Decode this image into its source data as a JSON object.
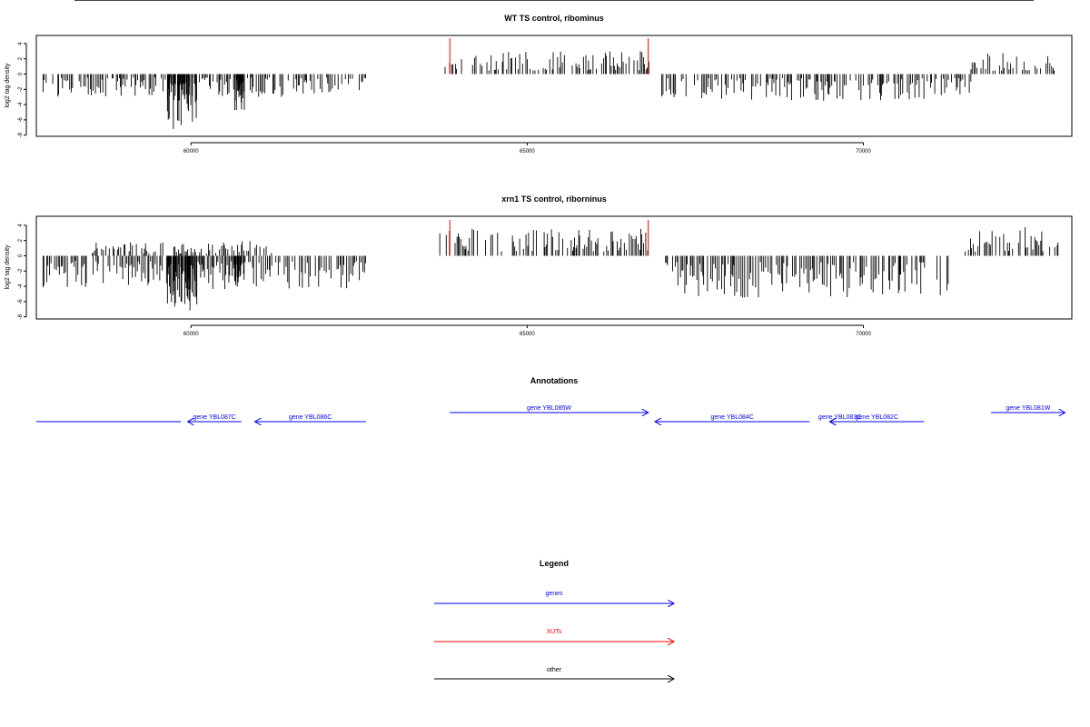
{
  "chart_data": [
    {
      "type": "bar",
      "title": "WT TS control, ribominus",
      "ylabel": "log2 tag density",
      "xlim": [
        57700,
        73100
      ],
      "ylim": [
        -8,
        5
      ],
      "yticks": [
        -8,
        -6,
        -4,
        -2,
        0,
        2,
        4
      ],
      "xticks": [
        60000,
        65000,
        70000
      ],
      "range": [
        57800,
        72900
      ],
      "color_pos": "#000000",
      "color_neg": "#000000",
      "marker_color": "#ff0000",
      "markers": [
        63850,
        66800
      ],
      "positive_clusters": [
        {
          "from": 63750,
          "to": 66850,
          "max": 3.0
        },
        {
          "from": 71600,
          "to": 72900,
          "max": 2.8
        }
      ],
      "negative_clusters": [
        {
          "from": 57800,
          "to": 62600,
          "max": 3.0
        },
        {
          "from": 59650,
          "to": 60100,
          "max": 7.5
        },
        {
          "from": 60650,
          "to": 60800,
          "max": 5.2
        },
        {
          "from": 67000,
          "to": 71600,
          "max": 3.5
        }
      ]
    },
    {
      "type": "bar",
      "title": "xrn1 TS control, riborninus",
      "ylabel": "log2 tag density",
      "xlim": [
        57700,
        73100
      ],
      "ylim": [
        -8,
        5
      ],
      "yticks": [
        -8,
        -6,
        -4,
        -2,
        0,
        2,
        4
      ],
      "xticks": [
        60000,
        65000,
        70000
      ],
      "range": [
        57800,
        72900
      ],
      "color_pos": "#000000",
      "color_neg": "#000000",
      "marker_color": "#ff0000",
      "markers": [
        63850,
        66800
      ],
      "positive_clusters": [
        {
          "from": 58500,
          "to": 61200,
          "max": 2.0
        },
        {
          "from": 63700,
          "to": 66850,
          "max": 3.8
        },
        {
          "from": 71500,
          "to": 72900,
          "max": 3.8
        }
      ],
      "negative_clusters": [
        {
          "from": 57800,
          "to": 62600,
          "max": 4.5
        },
        {
          "from": 59650,
          "to": 60100,
          "max": 7.5
        },
        {
          "from": 60650,
          "to": 60800,
          "max": 6.0
        },
        {
          "from": 67000,
          "to": 71300,
          "max": 5.5
        }
      ]
    }
  ],
  "annotations": {
    "title": "Annotations",
    "genes": [
      {
        "label": "",
        "start": 57700,
        "end": 59850,
        "strand": "none",
        "row": 1
      },
      {
        "label": "gene YBL087C",
        "start": 60750,
        "end": 59950,
        "strand": "-",
        "row": 1
      },
      {
        "label": "gene YBL086C",
        "start": 62600,
        "end": 60950,
        "strand": "-",
        "row": 1
      },
      {
        "label": "gene YBL085W",
        "start": 63850,
        "end": 66800,
        "strand": "+",
        "row": 0
      },
      {
        "label": "gene YBL084C",
        "start": 69200,
        "end": 66900,
        "strand": "-",
        "row": 1
      },
      {
        "label": "gene YBL083C",
        "start": 69800,
        "end": 69500,
        "strand": "-",
        "row": 1
      },
      {
        "label": "gene YBL082C",
        "start": 70900,
        "end": 69500,
        "strand": "-",
        "row": 1
      },
      {
        "label": "gene YBL081W",
        "start": 71900,
        "end": 73000,
        "strand": "+",
        "row": 0
      }
    ],
    "color": "#0000ff"
  },
  "legend": {
    "title": "Legend",
    "items": [
      {
        "label": "genes",
        "color": "#0000ff"
      },
      {
        "label": "XUTs",
        "color": "#ff0000"
      },
      {
        "label": "other",
        "color": "#000000"
      }
    ]
  }
}
